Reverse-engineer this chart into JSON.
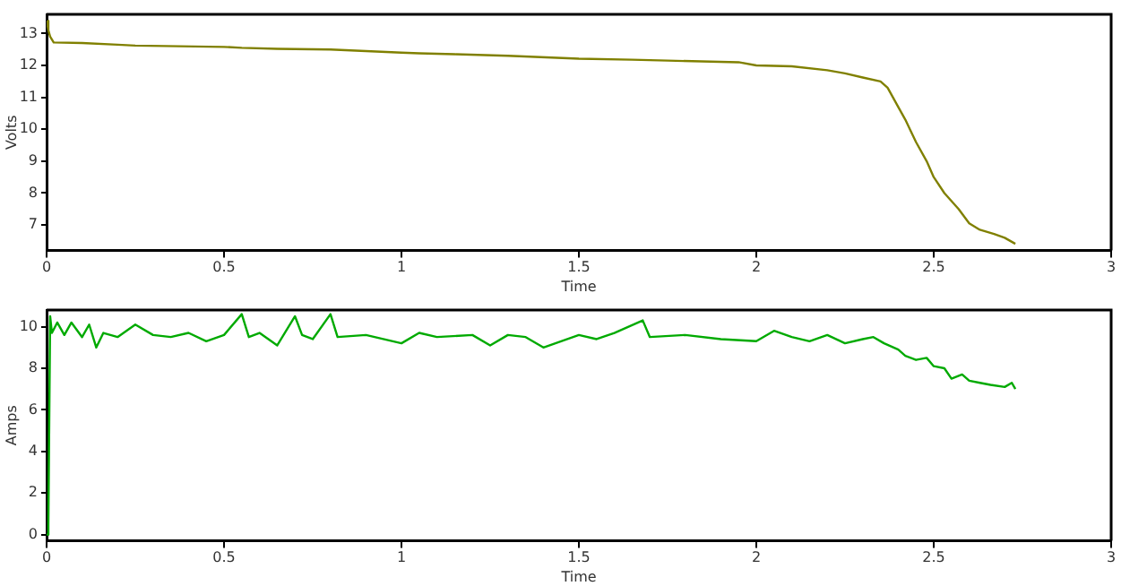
{
  "chart_data": [
    {
      "type": "line",
      "xlabel": "Time",
      "ylabel": "Volts",
      "xlim": [
        0,
        3
      ],
      "xticks": [
        0,
        0.5,
        1,
        1.5,
        2,
        2.5,
        3
      ],
      "ylim": [
        6.2,
        13.6
      ],
      "yticks": [
        7,
        8,
        9,
        10,
        11,
        12,
        13
      ],
      "grid": false,
      "legend": false,
      "marker": "none",
      "line_style": "solid",
      "series": [
        {
          "color": "#808000",
          "x": [
            0,
            0.005,
            0.01,
            0.02,
            0.1,
            0.2,
            0.25,
            0.5,
            0.55,
            0.65,
            0.8,
            0.9,
            1.0,
            1.05,
            1.15,
            1.3,
            1.5,
            1.65,
            1.75,
            1.95,
            2.0,
            2.1,
            2.2,
            2.25,
            2.3,
            2.35,
            2.37,
            2.4,
            2.42,
            2.45,
            2.48,
            2.5,
            2.53,
            2.57,
            2.6,
            2.63,
            2.67,
            2.7,
            2.73
          ],
          "values": [
            13.4,
            13.1,
            12.9,
            12.72,
            12.7,
            12.65,
            12.62,
            12.58,
            12.55,
            12.52,
            12.5,
            12.45,
            12.4,
            12.38,
            12.35,
            12.3,
            12.21,
            12.18,
            12.15,
            12.1,
            12.0,
            11.97,
            11.85,
            11.75,
            11.62,
            11.5,
            11.3,
            10.7,
            10.3,
            9.6,
            9.0,
            8.5,
            8.0,
            7.5,
            7.05,
            6.85,
            6.72,
            6.6,
            6.41
          ]
        }
      ]
    },
    {
      "type": "line",
      "xlabel": "Time",
      "ylabel": "Amps",
      "xlim": [
        0,
        3
      ],
      "xticks": [
        0,
        0.5,
        1,
        1.5,
        2,
        2.5,
        3
      ],
      "ylim": [
        -0.3,
        10.8
      ],
      "yticks": [
        0,
        2,
        4,
        6,
        8,
        10
      ],
      "grid": false,
      "legend": false,
      "marker": "none",
      "line_style": "solid",
      "series": [
        {
          "color": "#00aa00",
          "x": [
            0,
            0.005,
            0.01,
            0.015,
            0.03,
            0.05,
            0.07,
            0.1,
            0.12,
            0.14,
            0.16,
            0.2,
            0.25,
            0.3,
            0.35,
            0.4,
            0.45,
            0.5,
            0.55,
            0.57,
            0.6,
            0.65,
            0.7,
            0.72,
            0.75,
            0.8,
            0.82,
            0.9,
            1.0,
            1.05,
            1.1,
            1.2,
            1.25,
            1.3,
            1.35,
            1.4,
            1.5,
            1.55,
            1.6,
            1.68,
            1.7,
            1.8,
            1.9,
            2.0,
            2.05,
            2.1,
            2.15,
            2.2,
            2.25,
            2.3,
            2.33,
            2.36,
            2.4,
            2.42,
            2.45,
            2.48,
            2.5,
            2.53,
            2.55,
            2.58,
            2.6,
            2.63,
            2.66,
            2.7,
            2.72,
            2.73
          ],
          "values": [
            0,
            0.5,
            10.5,
            9.7,
            10.2,
            9.6,
            10.2,
            9.5,
            10.1,
            9.0,
            9.7,
            9.5,
            10.1,
            9.6,
            9.5,
            9.7,
            9.3,
            9.6,
            10.6,
            9.5,
            9.7,
            9.1,
            10.5,
            9.6,
            9.4,
            10.6,
            9.5,
            9.6,
            9.2,
            9.7,
            9.5,
            9.6,
            9.1,
            9.6,
            9.5,
            9.0,
            9.6,
            9.4,
            9.7,
            10.3,
            9.5,
            9.6,
            9.4,
            9.3,
            9.8,
            9.5,
            9.3,
            9.6,
            9.2,
            9.4,
            9.5,
            9.2,
            8.9,
            8.6,
            8.4,
            8.5,
            8.1,
            8.0,
            7.5,
            7.7,
            7.4,
            7.3,
            7.2,
            7.1,
            7.3,
            7.0
          ]
        }
      ]
    }
  ]
}
